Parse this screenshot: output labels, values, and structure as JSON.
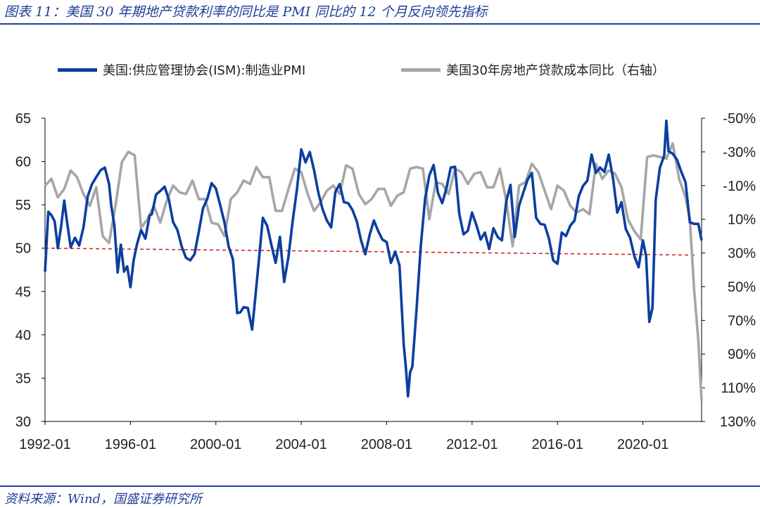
{
  "header": {
    "title": "图表 11：美国 30 年期地产贷款利率的同比是 PMI 同比的 12 个月反向领先指标"
  },
  "footer": {
    "source": "资料来源：Wind，国盛证券研究所"
  },
  "colors": {
    "pmi": "#0b3fa0",
    "mortgage": "#a6a6a6",
    "reference": "#d62728",
    "rule": "#1f3f99"
  },
  "chart_data": {
    "type": "line",
    "legend_position": "top",
    "grid": false,
    "x_ticks": [
      "1992-01",
      "1996-01",
      "2000-01",
      "2004-01",
      "2008-01",
      "2012-01",
      "2016-01",
      "2020-01"
    ],
    "x_range": [
      1992.0,
      2022.75
    ],
    "y_left": {
      "range": [
        30,
        65
      ],
      "ticks": [
        "65",
        "60",
        "55",
        "50",
        "45",
        "40",
        "35",
        "30"
      ]
    },
    "y_right": {
      "range": [
        130,
        -50
      ],
      "inverted": true,
      "ticks": [
        "-50%",
        "-30%",
        "-10%",
        "10%",
        "30%",
        "50%",
        "70%",
        "90%",
        "110%",
        "130%"
      ]
    },
    "reference_line": {
      "x": [
        1992.0,
        2022.5
      ],
      "y": [
        50.0,
        49.2
      ]
    },
    "series": [
      {
        "name": "美国:供应管理协会(ISM):制造业PMI",
        "axis": "left",
        "x": [
          1992.0,
          1992.15,
          1992.3,
          1992.45,
          1992.6,
          1992.75,
          1992.9,
          1993.0,
          1993.2,
          1993.4,
          1993.6,
          1993.8,
          1994.0,
          1994.2,
          1994.4,
          1994.6,
          1994.8,
          1995.0,
          1995.1,
          1995.25,
          1995.4,
          1995.55,
          1995.7,
          1995.85,
          1996.0,
          1996.15,
          1996.3,
          1996.5,
          1996.7,
          1996.9,
          1997.0,
          1997.2,
          1997.4,
          1997.6,
          1997.8,
          1998.0,
          1998.2,
          1998.4,
          1998.6,
          1998.8,
          1999.0,
          1999.2,
          1999.4,
          1999.6,
          1999.8,
          2000.0,
          2000.2,
          2000.4,
          2000.6,
          2000.8,
          2001.0,
          2001.15,
          2001.3,
          2001.5,
          2001.7,
          2001.85,
          2002.0,
          2002.2,
          2002.4,
          2002.6,
          2002.8,
          2003.0,
          2003.2,
          2003.4,
          2003.6,
          2003.8,
          2004.0,
          2004.2,
          2004.4,
          2004.6,
          2004.8,
          2005.0,
          2005.2,
          2005.4,
          2005.6,
          2005.8,
          2006.0,
          2006.2,
          2006.4,
          2006.6,
          2006.8,
          2007.0,
          2007.2,
          2007.4,
          2007.6,
          2007.8,
          2008.0,
          2008.2,
          2008.4,
          2008.6,
          2008.8,
          2008.9,
          2009.0,
          2009.1,
          2009.2,
          2009.4,
          2009.6,
          2009.8,
          2010.0,
          2010.2,
          2010.4,
          2010.6,
          2010.8,
          2011.0,
          2011.2,
          2011.4,
          2011.6,
          2011.8,
          2012.0,
          2012.2,
          2012.4,
          2012.6,
          2012.8,
          2013.0,
          2013.2,
          2013.4,
          2013.6,
          2013.8,
          2014.0,
          2014.2,
          2014.4,
          2014.6,
          2014.8,
          2015.0,
          2015.2,
          2015.4,
          2015.6,
          2015.8,
          2016.0,
          2016.2,
          2016.4,
          2016.6,
          2016.8,
          2017.0,
          2017.2,
          2017.4,
          2017.6,
          2017.8,
          2018.0,
          2018.2,
          2018.4,
          2018.6,
          2018.8,
          2019.0,
          2019.2,
          2019.4,
          2019.6,
          2019.8,
          2020.0,
          2020.15,
          2020.3,
          2020.45,
          2020.6,
          2020.8,
          2021.0,
          2021.1,
          2021.2,
          2021.4,
          2021.6,
          2021.8,
          2022.0,
          2022.2,
          2022.4,
          2022.6,
          2022.75
        ],
        "values": [
          47.3,
          54.2,
          53.8,
          53.1,
          50.0,
          52.5,
          55.5,
          53.6,
          50.1,
          51.2,
          50.3,
          52.4,
          56.0,
          57.4,
          58.2,
          59.0,
          59.3,
          57.4,
          54.9,
          52.6,
          47.2,
          50.4,
          47.3,
          47.9,
          45.5,
          48.6,
          50.4,
          52.1,
          51.1,
          53.8,
          53.9,
          56.2,
          56.6,
          57.1,
          55.6,
          53.0,
          52.1,
          50.2,
          48.9,
          48.6,
          49.3,
          51.9,
          54.6,
          55.7,
          57.5,
          56.9,
          55.0,
          53.0,
          50.2,
          48.7,
          42.5,
          42.6,
          43.2,
          43.1,
          40.6,
          44.4,
          48.2,
          53.5,
          52.6,
          50.4,
          48.3,
          51.3,
          46.1,
          49.0,
          53.2,
          56.8,
          61.4,
          59.9,
          61.1,
          59.0,
          56.4,
          54.5,
          53.2,
          52.4,
          56.5,
          57.4,
          55.3,
          55.2,
          54.4,
          53.1,
          50.9,
          49.3,
          51.5,
          53.2,
          52.0,
          51.0,
          50.7,
          48.3,
          49.6,
          48.0,
          38.9,
          36.2,
          32.9,
          35.7,
          36.3,
          42.9,
          50.3,
          55.7,
          58.4,
          59.6,
          56.4,
          55.2,
          56.9,
          59.3,
          59.4,
          54.0,
          51.6,
          52.0,
          54.1,
          52.7,
          51.0,
          51.8,
          49.9,
          52.3,
          51.3,
          50.9,
          55.4,
          57.3,
          51.3,
          54.9,
          56.4,
          57.9,
          58.7,
          53.5,
          52.8,
          52.7,
          51.1,
          48.6,
          48.2,
          51.8,
          51.4,
          52.6,
          53.2,
          56.0,
          57.2,
          57.8,
          60.8,
          58.7,
          59.3,
          58.8,
          60.8,
          58.1,
          54.1,
          55.3,
          52.2,
          51.2,
          49.1,
          47.8,
          50.9,
          49.1,
          41.5,
          43.1,
          55.6,
          59.3,
          60.7,
          64.7,
          61.2,
          60.9,
          60.2,
          58.8,
          57.6,
          53.0,
          52.8,
          52.8,
          50.9
        ]
      },
      {
        "name": "美国30年房地产贷款成本同比（右轴）",
        "axis": "right",
        "x": [
          1992.0,
          1992.3,
          1992.6,
          1992.9,
          1993.2,
          1993.5,
          1993.8,
          1994.1,
          1994.4,
          1994.7,
          1995.0,
          1995.3,
          1995.6,
          1995.9,
          1996.2,
          1996.5,
          1996.8,
          1997.1,
          1997.4,
          1997.7,
          1998.0,
          1998.3,
          1998.6,
          1998.9,
          1999.2,
          1999.5,
          1999.8,
          2000.1,
          2000.4,
          2000.7,
          2001.0,
          2001.3,
          2001.6,
          2001.9,
          2002.2,
          2002.5,
          2002.8,
          2003.1,
          2003.4,
          2003.7,
          2004.0,
          2004.3,
          2004.6,
          2004.9,
          2005.2,
          2005.5,
          2005.8,
          2006.1,
          2006.4,
          2006.7,
          2007.0,
          2007.3,
          2007.6,
          2007.9,
          2008.2,
          2008.5,
          2008.8,
          2009.1,
          2009.4,
          2009.7,
          2010.0,
          2010.3,
          2010.6,
          2010.9,
          2011.2,
          2011.5,
          2011.8,
          2012.1,
          2012.4,
          2012.7,
          2013.0,
          2013.3,
          2013.6,
          2013.9,
          2014.2,
          2014.5,
          2014.8,
          2015.1,
          2015.4,
          2015.7,
          2016.0,
          2016.3,
          2016.6,
          2016.9,
          2017.2,
          2017.5,
          2017.8,
          2018.1,
          2018.4,
          2018.7,
          2019.0,
          2019.3,
          2019.6,
          2019.9,
          2020.2,
          2020.5,
          2020.8,
          2021.1,
          2021.4,
          2021.7,
          2022.0,
          2022.2,
          2022.4,
          2022.6,
          2022.75
        ],
        "values": [
          -10,
          -14,
          -3,
          -8,
          -19,
          -15,
          -5,
          2,
          -9,
          20,
          24,
          2,
          -24,
          -30,
          -28,
          15,
          10,
          2,
          12,
          -1,
          -10,
          -6,
          -5,
          -13,
          -2,
          -2,
          12,
          13,
          20,
          -2,
          -6,
          -13,
          -11,
          -21,
          -15,
          -15,
          5,
          5,
          -8,
          -20,
          -18,
          -5,
          5,
          0,
          -7,
          -10,
          -5,
          -22,
          -20,
          -5,
          1,
          -2,
          -8,
          -8,
          2,
          -4,
          -6,
          -20,
          -21,
          -20,
          10,
          -12,
          -11,
          -5,
          -20,
          -18,
          -11,
          -17,
          -18,
          -9,
          -9,
          -20,
          -1,
          26,
          -10,
          -12,
          -23,
          -18,
          -7,
          4,
          -10,
          -7,
          2,
          6,
          4,
          7,
          -23,
          -14,
          -19,
          -17,
          -9,
          10,
          17,
          22,
          -27,
          -28,
          -27,
          -26,
          -35,
          -14,
          -3,
          10,
          52,
          82,
          118
        ]
      }
    ]
  }
}
